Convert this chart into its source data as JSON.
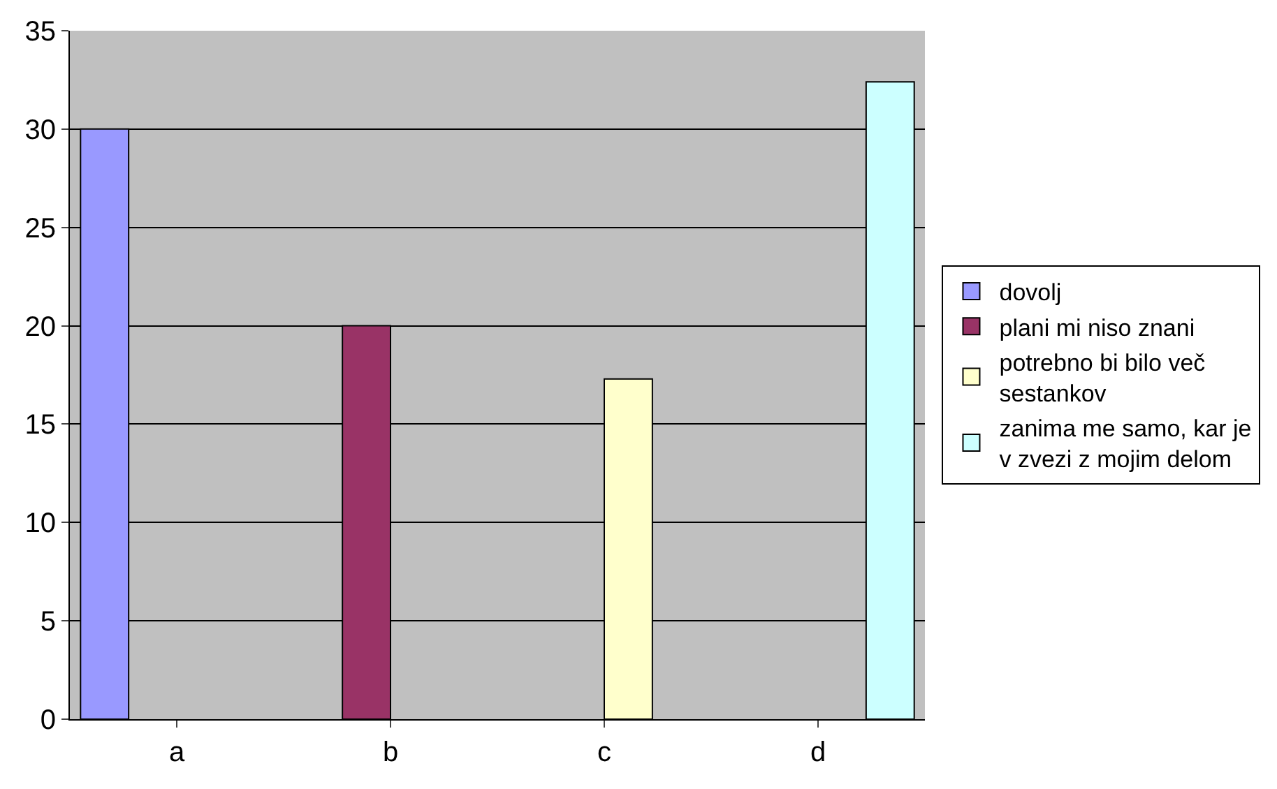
{
  "chart_data": {
    "type": "bar",
    "categories": [
      "a",
      "b",
      "c",
      "d"
    ],
    "series": [
      {
        "name": "dovolj",
        "color": "#9999ff",
        "values": [
          30,
          null,
          null,
          null
        ]
      },
      {
        "name": "plani mi niso znani",
        "color": "#993366",
        "values": [
          null,
          20,
          null,
          null
        ]
      },
      {
        "name": "potrebno bi bilo več sestankov",
        "color": "#ffffcc",
        "values": [
          null,
          null,
          17.3,
          null
        ]
      },
      {
        "name": "zanima me samo, kar je v zvezi z mojim delom",
        "color": "#ccffff",
        "values": [
          null,
          null,
          null,
          32.4
        ]
      }
    ],
    "ylim": [
      0,
      35
    ],
    "yticks": [
      0,
      5,
      10,
      15,
      20,
      25,
      30,
      35
    ],
    "grid": "y",
    "legend": "right"
  }
}
